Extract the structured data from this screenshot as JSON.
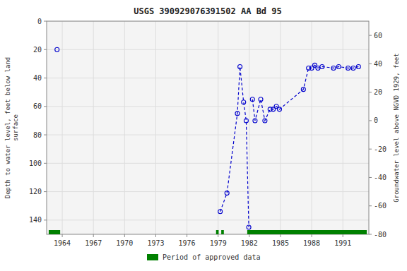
{
  "chart_data": {
    "type": "line",
    "title": "USGS 390929076391502 AA Bd  95",
    "x": [
      1963.5,
      null,
      1979.2,
      1979.85,
      1980.85,
      1981.1,
      1981.45,
      1981.7,
      1981.95,
      null,
      1982.3,
      1982.55,
      1983.1,
      1983.5,
      1984.0,
      1984.3,
      1984.6,
      1984.9,
      1987.2,
      1987.7,
      1988.0,
      1988.3,
      1988.6,
      1989.0,
      1990.1,
      1990.6,
      1991.5,
      1992.0,
      1992.5
    ],
    "series": [
      {
        "color": "#0000CD",
        "marker": "circle",
        "line_style": "dashed",
        "values": [
          20,
          null,
          134,
          121,
          65,
          32,
          57,
          70,
          145,
          null,
          55,
          70,
          55,
          70,
          62,
          62,
          60,
          62,
          48,
          33,
          33,
          31,
          33,
          32,
          33,
          32,
          33,
          33,
          32
        ]
      }
    ],
    "xlim": [
      1962.5,
      1993.5
    ],
    "xticks": [
      1964,
      1967,
      1970,
      1973,
      1976,
      1979,
      1982,
      1985,
      1988,
      1991
    ],
    "ylim": [
      150,
      0
    ],
    "yticks": [
      0,
      20,
      40,
      60,
      80,
      100,
      120,
      140
    ],
    "y_label": "Depth to water level, feet below land\n surface",
    "y2lim": [
      -80,
      70
    ],
    "y2ticks": [
      60,
      40,
      20,
      0,
      -20,
      -40,
      -60,
      -80
    ],
    "y2_label": "Groundwater level above NGVD 1929, feet",
    "grid": true,
    "periods": {
      "name": "Period of approved data",
      "color": "#008000",
      "ranges": [
        [
          1962.7,
          1963.8
        ],
        [
          1978.8,
          1979.05
        ],
        [
          1979.3,
          1979.55
        ],
        [
          1981.8,
          1993.2
        ],
        [
          1993.0,
          1993.3
        ]
      ]
    }
  }
}
